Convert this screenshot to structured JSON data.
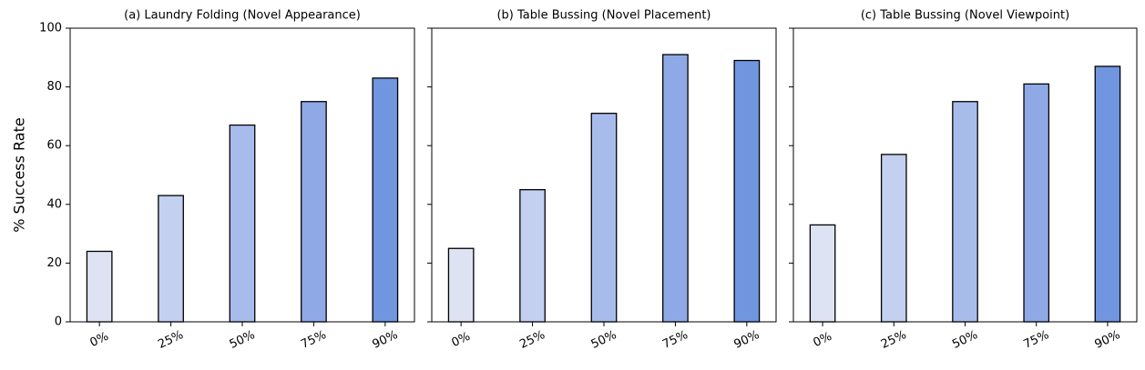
{
  "chart_data": [
    {
      "type": "bar",
      "title": "(a) Laundry Folding (Novel Appearance)",
      "ylabel": "% Success Rate",
      "categories": [
        "0%",
        "25%",
        "50%",
        "75%",
        "90%"
      ],
      "values": [
        24,
        43,
        67,
        75,
        83
      ],
      "colors": [
        "#dde3f3",
        "#c3d0ef",
        "#a8bcec",
        "#8fa9e6",
        "#7096e0"
      ],
      "ylim": [
        0,
        100
      ],
      "yticks": [
        0,
        20,
        40,
        60,
        80,
        100
      ]
    },
    {
      "type": "bar",
      "title": "(b) Table Bussing (Novel Placement)",
      "categories": [
        "0%",
        "25%",
        "50%",
        "75%",
        "90%"
      ],
      "values": [
        25,
        45,
        71,
        91,
        89
      ],
      "colors": [
        "#dde3f3",
        "#c3d0ef",
        "#a8bcec",
        "#8fa9e6",
        "#7096e0"
      ],
      "ylim": [
        0,
        100
      ],
      "yticks": [
        0,
        20,
        40,
        60,
        80,
        100
      ]
    },
    {
      "type": "bar",
      "title": "(c) Table Bussing (Novel Viewpoint)",
      "categories": [
        "0%",
        "25%",
        "50%",
        "75%",
        "90%"
      ],
      "values": [
        33,
        57,
        75,
        81,
        87
      ],
      "colors": [
        "#dde3f3",
        "#c3d0ef",
        "#a8bcec",
        "#8fa9e6",
        "#7096e0"
      ],
      "ylim": [
        0,
        100
      ],
      "yticks": [
        0,
        20,
        40,
        60,
        80,
        100
      ]
    }
  ]
}
